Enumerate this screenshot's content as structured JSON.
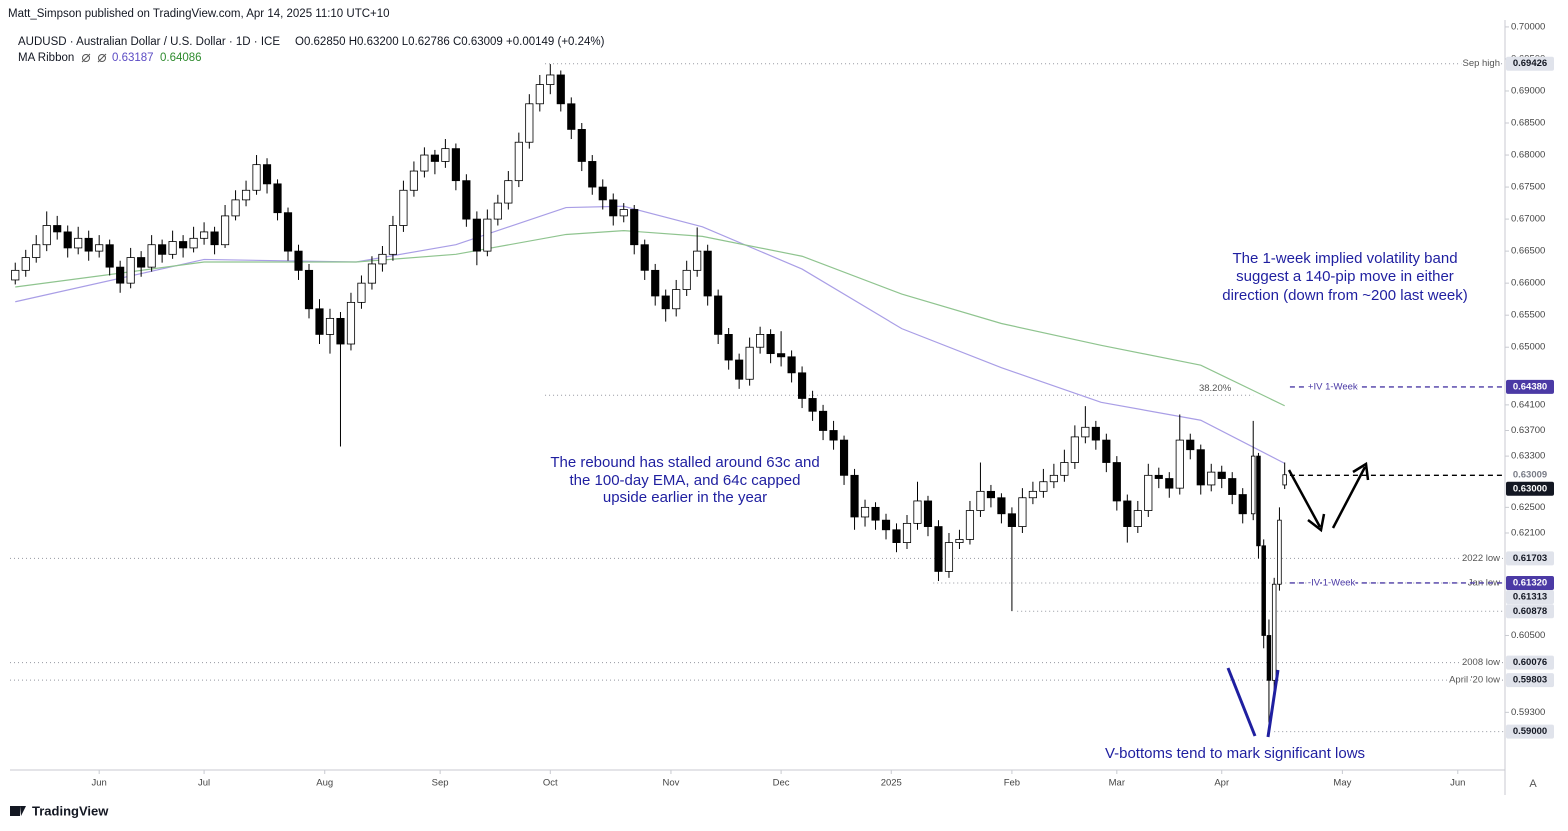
{
  "header": {
    "byline": "Matt_Simpson published on TradingView.com, Apr 14, 2025 11:10 UTC+10",
    "symbol": "AUDUSD · Australian Dollar / U.S. Dollar · 1D · ICE",
    "ohlc": "O0.62850 H0.63200 L0.62786 C0.63009 +0.00149 (+0.24%)",
    "indicator": "MA Ribbon",
    "ma_values": [
      "0.63187",
      "0.64086"
    ]
  },
  "footer": {
    "brand": "TradingView",
    "auto_button": "A"
  },
  "chart_data": {
    "type": "candlestick",
    "xlim": [
      -1,
      284
    ],
    "ylim": [
      0.584,
      0.7003
    ],
    "xticks": [
      {
        "value": 16,
        "label": "Jun"
      },
      {
        "value": 36,
        "label": "Jul"
      },
      {
        "value": 59,
        "label": "Aug"
      },
      {
        "value": 81,
        "label": "Sep"
      },
      {
        "value": 102,
        "label": "Oct"
      },
      {
        "value": 125,
        "label": "Nov"
      },
      {
        "value": 146,
        "label": "Dec"
      },
      {
        "value": 167,
        "label": "2025"
      },
      {
        "value": 190,
        "label": "Feb"
      },
      {
        "value": 210,
        "label": "Mar"
      },
      {
        "value": 230,
        "label": "Apr"
      },
      {
        "value": 253,
        "label": "May"
      },
      {
        "value": 275,
        "label": "Jun"
      }
    ],
    "yticks": [
      {
        "value": 0.7,
        "label": "0.70000"
      },
      {
        "value": 0.695,
        "label": "0.69500"
      },
      {
        "value": 0.69,
        "label": "0.69000"
      },
      {
        "value": 0.685,
        "label": "0.68500"
      },
      {
        "value": 0.68,
        "label": "0.68000"
      },
      {
        "value": 0.675,
        "label": "0.67500"
      },
      {
        "value": 0.67,
        "label": "0.67000"
      },
      {
        "value": 0.665,
        "label": "0.66500"
      },
      {
        "value": 0.66,
        "label": "0.66000"
      },
      {
        "value": 0.655,
        "label": "0.65500"
      },
      {
        "value": 0.65,
        "label": "0.65000"
      },
      {
        "value": 0.641,
        "label": "0.64100"
      },
      {
        "value": 0.637,
        "label": "0.63700"
      },
      {
        "value": 0.633,
        "label": "0.63300"
      },
      {
        "value": 0.625,
        "label": "0.62500"
      },
      {
        "value": 0.621,
        "label": "0.62100"
      },
      {
        "value": 0.605,
        "label": "0.60500"
      },
      {
        "value": 0.593,
        "label": "0.59300"
      }
    ],
    "up_color": "#ffffff",
    "down_color": "#000000",
    "wick_color": "#000000",
    "x": [
      0,
      2,
      4,
      6,
      8,
      10,
      12,
      14,
      16,
      18,
      20,
      22,
      24,
      26,
      28,
      30,
      32,
      34,
      36,
      38,
      40,
      42,
      44,
      46,
      48,
      50,
      52,
      54,
      56,
      58,
      60,
      62,
      64,
      66,
      68,
      70,
      72,
      74,
      76,
      78,
      80,
      82,
      84,
      86,
      88,
      90,
      92,
      94,
      96,
      98,
      100,
      102,
      104,
      106,
      108,
      110,
      112,
      114,
      116,
      118,
      120,
      122,
      124,
      126,
      128,
      130,
      132,
      134,
      136,
      138,
      140,
      142,
      144,
      146,
      148,
      150,
      152,
      154,
      156,
      158,
      160,
      162,
      164,
      166,
      168,
      170,
      172,
      174,
      176,
      178,
      180,
      182,
      184,
      186,
      188,
      190,
      192,
      194,
      196,
      198,
      200,
      202,
      204,
      206,
      208,
      210,
      212,
      214,
      216,
      218,
      220,
      222,
      224,
      226,
      228,
      230,
      232,
      234,
      236,
      237,
      238,
      239,
      240,
      241,
      242
    ],
    "open": [
      0.6605,
      0.662,
      0.664,
      0.666,
      0.669,
      0.668,
      0.6655,
      0.667,
      0.665,
      0.666,
      0.6625,
      0.66,
      0.664,
      0.6625,
      0.666,
      0.6645,
      0.6665,
      0.6655,
      0.667,
      0.668,
      0.666,
      0.6705,
      0.673,
      0.6745,
      0.6785,
      0.6755,
      0.671,
      0.665,
      0.662,
      0.656,
      0.652,
      0.6545,
      0.6505,
      0.657,
      0.66,
      0.663,
      0.6645,
      0.669,
      0.6745,
      0.6775,
      0.68,
      0.679,
      0.681,
      0.676,
      0.67,
      0.665,
      0.67,
      0.6725,
      0.676,
      0.682,
      0.688,
      0.691,
      0.6925,
      0.688,
      0.684,
      0.679,
      0.675,
      0.673,
      0.6705,
      0.6715,
      0.666,
      0.662,
      0.658,
      0.656,
      0.659,
      0.662,
      0.665,
      0.658,
      0.652,
      0.648,
      0.645,
      0.65,
      0.652,
      0.649,
      0.6485,
      0.646,
      0.642,
      0.64,
      0.637,
      0.6355,
      0.63,
      0.6235,
      0.625,
      0.623,
      0.6215,
      0.6195,
      0.6225,
      0.626,
      0.622,
      0.615,
      0.6195,
      0.62,
      0.6245,
      0.6275,
      0.6265,
      0.624,
      0.622,
      0.6265,
      0.6275,
      0.629,
      0.63,
      0.632,
      0.636,
      0.6375,
      0.6355,
      0.632,
      0.626,
      0.622,
      0.6245,
      0.63,
      0.6295,
      0.628,
      0.6355,
      0.634,
      0.6285,
      0.6305,
      0.6295,
      0.627,
      0.624,
      0.633,
      0.619,
      0.605,
      0.598,
      0.613,
      0.6285
    ],
    "high": [
      0.6632,
      0.6652,
      0.6675,
      0.6712,
      0.6705,
      0.669,
      0.6688,
      0.6682,
      0.6675,
      0.6668,
      0.6635,
      0.6655,
      0.665,
      0.6675,
      0.6668,
      0.6682,
      0.6675,
      0.6688,
      0.6695,
      0.6688,
      0.6722,
      0.6745,
      0.676,
      0.68,
      0.6795,
      0.6762,
      0.6718,
      0.666,
      0.663,
      0.6575,
      0.656,
      0.6555,
      0.6585,
      0.6612,
      0.6642,
      0.6658,
      0.6705,
      0.676,
      0.679,
      0.6812,
      0.6808,
      0.6825,
      0.6818,
      0.677,
      0.6712,
      0.6715,
      0.6738,
      0.6775,
      0.6835,
      0.6895,
      0.6925,
      0.6942,
      0.6932,
      0.689,
      0.685,
      0.68,
      0.6762,
      0.674,
      0.6725,
      0.6722,
      0.6668,
      0.663,
      0.659,
      0.6605,
      0.6635,
      0.6687,
      0.666,
      0.659,
      0.653,
      0.649,
      0.6515,
      0.6532,
      0.6528,
      0.6525,
      0.6495,
      0.647,
      0.6432,
      0.641,
      0.6385,
      0.6362,
      0.631,
      0.6262,
      0.6258,
      0.624,
      0.6225,
      0.6238,
      0.629,
      0.6268,
      0.623,
      0.621,
      0.6215,
      0.626,
      0.632,
      0.6285,
      0.6272,
      0.625,
      0.628,
      0.629,
      0.631,
      0.6318,
      0.634,
      0.6378,
      0.6408,
      0.6385,
      0.6365,
      0.633,
      0.627,
      0.626,
      0.6318,
      0.6312,
      0.6305,
      0.6395,
      0.6365,
      0.6348,
      0.6318,
      0.6315,
      0.6305,
      0.628,
      0.6385,
      0.6335,
      0.62,
      0.6075,
      0.614,
      0.625,
      0.632
    ],
    "low": [
      0.6598,
      0.661,
      0.6632,
      0.665,
      0.6668,
      0.664,
      0.6645,
      0.6635,
      0.664,
      0.6612,
      0.6585,
      0.6592,
      0.661,
      0.6618,
      0.6632,
      0.6638,
      0.664,
      0.6648,
      0.666,
      0.6645,
      0.6655,
      0.6698,
      0.672,
      0.6738,
      0.674,
      0.6698,
      0.6635,
      0.6605,
      0.6545,
      0.6505,
      0.649,
      0.6345,
      0.6495,
      0.656,
      0.659,
      0.6618,
      0.6635,
      0.668,
      0.6735,
      0.6765,
      0.677,
      0.678,
      0.6745,
      0.6688,
      0.6628,
      0.6642,
      0.669,
      0.6715,
      0.675,
      0.681,
      0.6868,
      0.6895,
      0.6868,
      0.6825,
      0.6775,
      0.6738,
      0.6715,
      0.669,
      0.6695,
      0.6645,
      0.6605,
      0.6565,
      0.654,
      0.6548,
      0.658,
      0.661,
      0.6565,
      0.6505,
      0.6465,
      0.6435,
      0.644,
      0.649,
      0.6475,
      0.647,
      0.6445,
      0.6405,
      0.6385,
      0.6355,
      0.634,
      0.6285,
      0.6215,
      0.622,
      0.6215,
      0.62,
      0.618,
      0.6185,
      0.6215,
      0.6205,
      0.6135,
      0.614,
      0.6185,
      0.6192,
      0.6235,
      0.625,
      0.6225,
      0.6088,
      0.621,
      0.6255,
      0.6265,
      0.628,
      0.629,
      0.631,
      0.635,
      0.634,
      0.6305,
      0.6245,
      0.6195,
      0.621,
      0.6235,
      0.628,
      0.6265,
      0.627,
      0.6325,
      0.627,
      0.6275,
      0.628,
      0.6255,
      0.6225,
      0.623,
      0.617,
      0.603,
      0.5914,
      0.596,
      0.612,
      0.62786
    ],
    "close": [
      0.662,
      0.664,
      0.666,
      0.669,
      0.668,
      0.6655,
      0.667,
      0.665,
      0.666,
      0.6625,
      0.66,
      0.664,
      0.6625,
      0.666,
      0.6645,
      0.6665,
      0.6655,
      0.667,
      0.668,
      0.666,
      0.6705,
      0.673,
      0.6745,
      0.6785,
      0.6755,
      0.671,
      0.665,
      0.662,
      0.656,
      0.652,
      0.6545,
      0.6505,
      0.657,
      0.66,
      0.663,
      0.6645,
      0.669,
      0.6745,
      0.6775,
      0.68,
      0.679,
      0.681,
      0.676,
      0.67,
      0.665,
      0.67,
      0.6725,
      0.676,
      0.682,
      0.688,
      0.691,
      0.6925,
      0.688,
      0.684,
      0.679,
      0.675,
      0.673,
      0.6705,
      0.6715,
      0.666,
      0.662,
      0.658,
      0.656,
      0.659,
      0.662,
      0.665,
      0.658,
      0.652,
      0.648,
      0.645,
      0.65,
      0.652,
      0.649,
      0.6485,
      0.646,
      0.642,
      0.64,
      0.637,
      0.6355,
      0.63,
      0.6235,
      0.625,
      0.623,
      0.6215,
      0.6195,
      0.6225,
      0.626,
      0.622,
      0.615,
      0.6195,
      0.62,
      0.6245,
      0.6275,
      0.6265,
      0.624,
      0.622,
      0.6265,
      0.6275,
      0.629,
      0.63,
      0.632,
      0.636,
      0.6375,
      0.6355,
      0.632,
      0.626,
      0.622,
      0.6245,
      0.63,
      0.6295,
      0.628,
      0.6355,
      0.634,
      0.6285,
      0.6305,
      0.6295,
      0.627,
      0.624,
      0.633,
      0.619,
      0.605,
      0.598,
      0.613,
      0.623,
      0.63009
    ],
    "series": [
      {
        "name": "100-day EMA",
        "color": "#a99ee6",
        "x": [
          0,
          36,
          65,
          84,
          105,
          116,
          131,
          150,
          169,
          188,
          207,
          226,
          242
        ],
        "values": [
          0.6571,
          0.6637,
          0.6633,
          0.666,
          0.6718,
          0.672,
          0.6688,
          0.6622,
          0.6529,
          0.6468,
          0.6414,
          0.6386,
          0.63187
        ]
      },
      {
        "name": "200-day EMA",
        "color": "#8fc48f",
        "x": [
          0,
          36,
          65,
          84,
          105,
          116,
          131,
          150,
          169,
          188,
          207,
          226,
          242
        ],
        "values": [
          0.6594,
          0.6633,
          0.6633,
          0.6645,
          0.6676,
          0.6682,
          0.6673,
          0.6642,
          0.6583,
          0.6537,
          0.6503,
          0.6472,
          0.64086
        ]
      }
    ],
    "levels": [
      {
        "value": 0.69426,
        "label": "Sep high",
        "price_label": "0.69426",
        "start": 101,
        "style": "dotted",
        "color": "#9598a1",
        "box": "#e0e3eb"
      },
      {
        "value": 0.6438,
        "label": "+IV 1-Week",
        "price_label": "0.64380",
        "start": 243,
        "style": "dashed",
        "color": "#4b3aa5",
        "box": "#4b3aa5"
      },
      {
        "value": 0.6425,
        "label": "38.20%",
        "start": 101,
        "end": 236,
        "style": "dotted",
        "color": "#9598a1"
      },
      {
        "value": 0.63009,
        "price_label": "0.63009",
        "style": "none",
        "color": "#787b86",
        "box": "#ffffff"
      },
      {
        "value": 0.63,
        "price_label": "0.63000",
        "start": 243,
        "style": "dashed",
        "color": "#000000",
        "box": "#131722"
      },
      {
        "value": 0.61703,
        "label": "2022 low",
        "price_label": "0.61703",
        "start": -1,
        "style": "dotted",
        "color": "#9598a1",
        "box": "#e0e3eb"
      },
      {
        "value": 0.6132,
        "label": "Jan low",
        "start": 175,
        "style": "dotted",
        "color": "#9598a1"
      },
      {
        "value": 0.6132,
        "label": "-IV 1-Week",
        "price_label": "0.61320",
        "start": 243,
        "style": "dashed",
        "color": "#4b3aa5",
        "box": "#4b3aa5"
      },
      {
        "value": 0.61313,
        "price_label": "0.61313",
        "style": "none",
        "color": "#9598a1",
        "box": "#e0e3eb"
      },
      {
        "value": 0.60878,
        "price_label": "0.60878",
        "start": 191,
        "style": "dotted",
        "color": "#9598a1",
        "box": "#e0e3eb"
      },
      {
        "value": 0.60076,
        "label": "2008 low",
        "price_label": "0.60076",
        "start": -1,
        "style": "dotted",
        "color": "#9598a1",
        "box": "#e0e3eb"
      },
      {
        "value": 0.59803,
        "label": "April '20 low",
        "price_label": "0.59803",
        "start": -1,
        "style": "dotted",
        "color": "#9598a1",
        "box": "#e0e3eb"
      },
      {
        "value": 0.59,
        "price_label": "0.59000",
        "start": 240,
        "style": "dotted",
        "color": "#9598a1",
        "box": "#e0e3eb"
      }
    ],
    "annotations": [
      {
        "lines": [
          "The 1-week implied volatility band",
          "suggest a 140-pip move in either",
          "direction (down from ~200 last week)"
        ]
      },
      {
        "lines": [
          "The rebound has stalled around 63c and",
          "the 100-day EMA, and 64c capped",
          "upside earlier in the year"
        ]
      },
      {
        "lines": [
          "V-bottoms tend to mark significant lows"
        ]
      }
    ]
  }
}
